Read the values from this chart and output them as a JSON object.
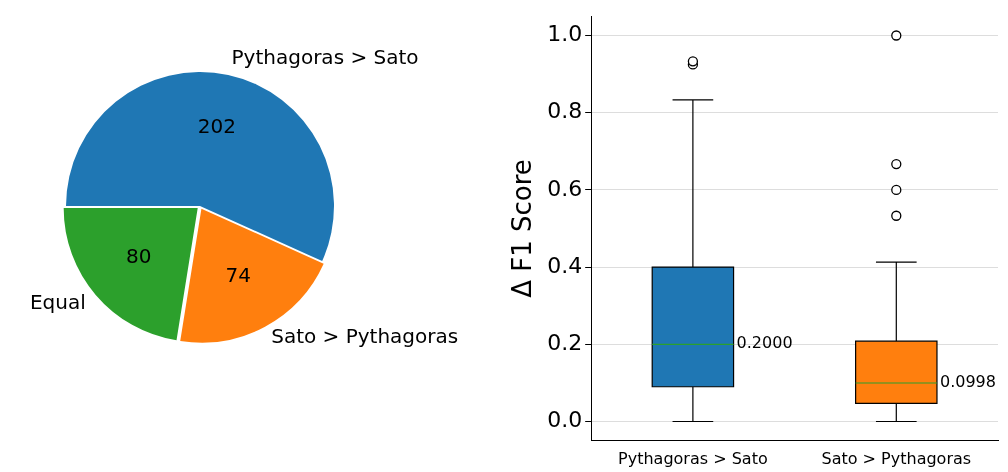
{
  "chart_data": [
    {
      "type": "pie",
      "categories": [
        "Pythagoras > Sato",
        "Sato > Pythagoras",
        "Equal"
      ],
      "values": [
        202,
        74,
        80
      ],
      "colors": [
        "#1f77b4",
        "#ff7f0e",
        "#2ca02c"
      ],
      "data_labels": true
    },
    {
      "type": "box",
      "categories": [
        "Pythagoras > Sato",
        "Sato > Pythagoras"
      ],
      "colors": [
        "#1f77b4",
        "#ff7f0e"
      ],
      "ylabel": "Δ F1 Score",
      "ylim": [
        -0.05,
        1.05
      ],
      "yticks": [
        {
          "value": 0,
          "label": "0.0"
        },
        {
          "value": 0.2,
          "label": "0.2"
        },
        {
          "value": 0.4,
          "label": "0.4"
        },
        {
          "value": 0.6,
          "label": "0.6"
        },
        {
          "value": 0.8,
          "label": "0.8"
        },
        {
          "value": 1,
          "label": "1.0"
        }
      ],
      "grid": "y",
      "boxes": [
        {
          "low": 0,
          "q1": 0.09,
          "median": 0.2,
          "q3": 0.4,
          "high": 0.833,
          "outliers": [
            0.925,
            0.933
          ]
        },
        {
          "low": 0,
          "q1": 0.047,
          "median": 0.0998,
          "q3": 0.208,
          "high": 0.413,
          "outliers": [
            0.533,
            0.6,
            0.667,
            1.0
          ]
        }
      ],
      "annotations": [
        {
          "text": "0.2000",
          "x": "Pythagoras > Sato",
          "y": 0.2
        },
        {
          "text": "0.0998",
          "x": "Sato > Pythagoras",
          "y": 0.0998
        }
      ]
    }
  ]
}
